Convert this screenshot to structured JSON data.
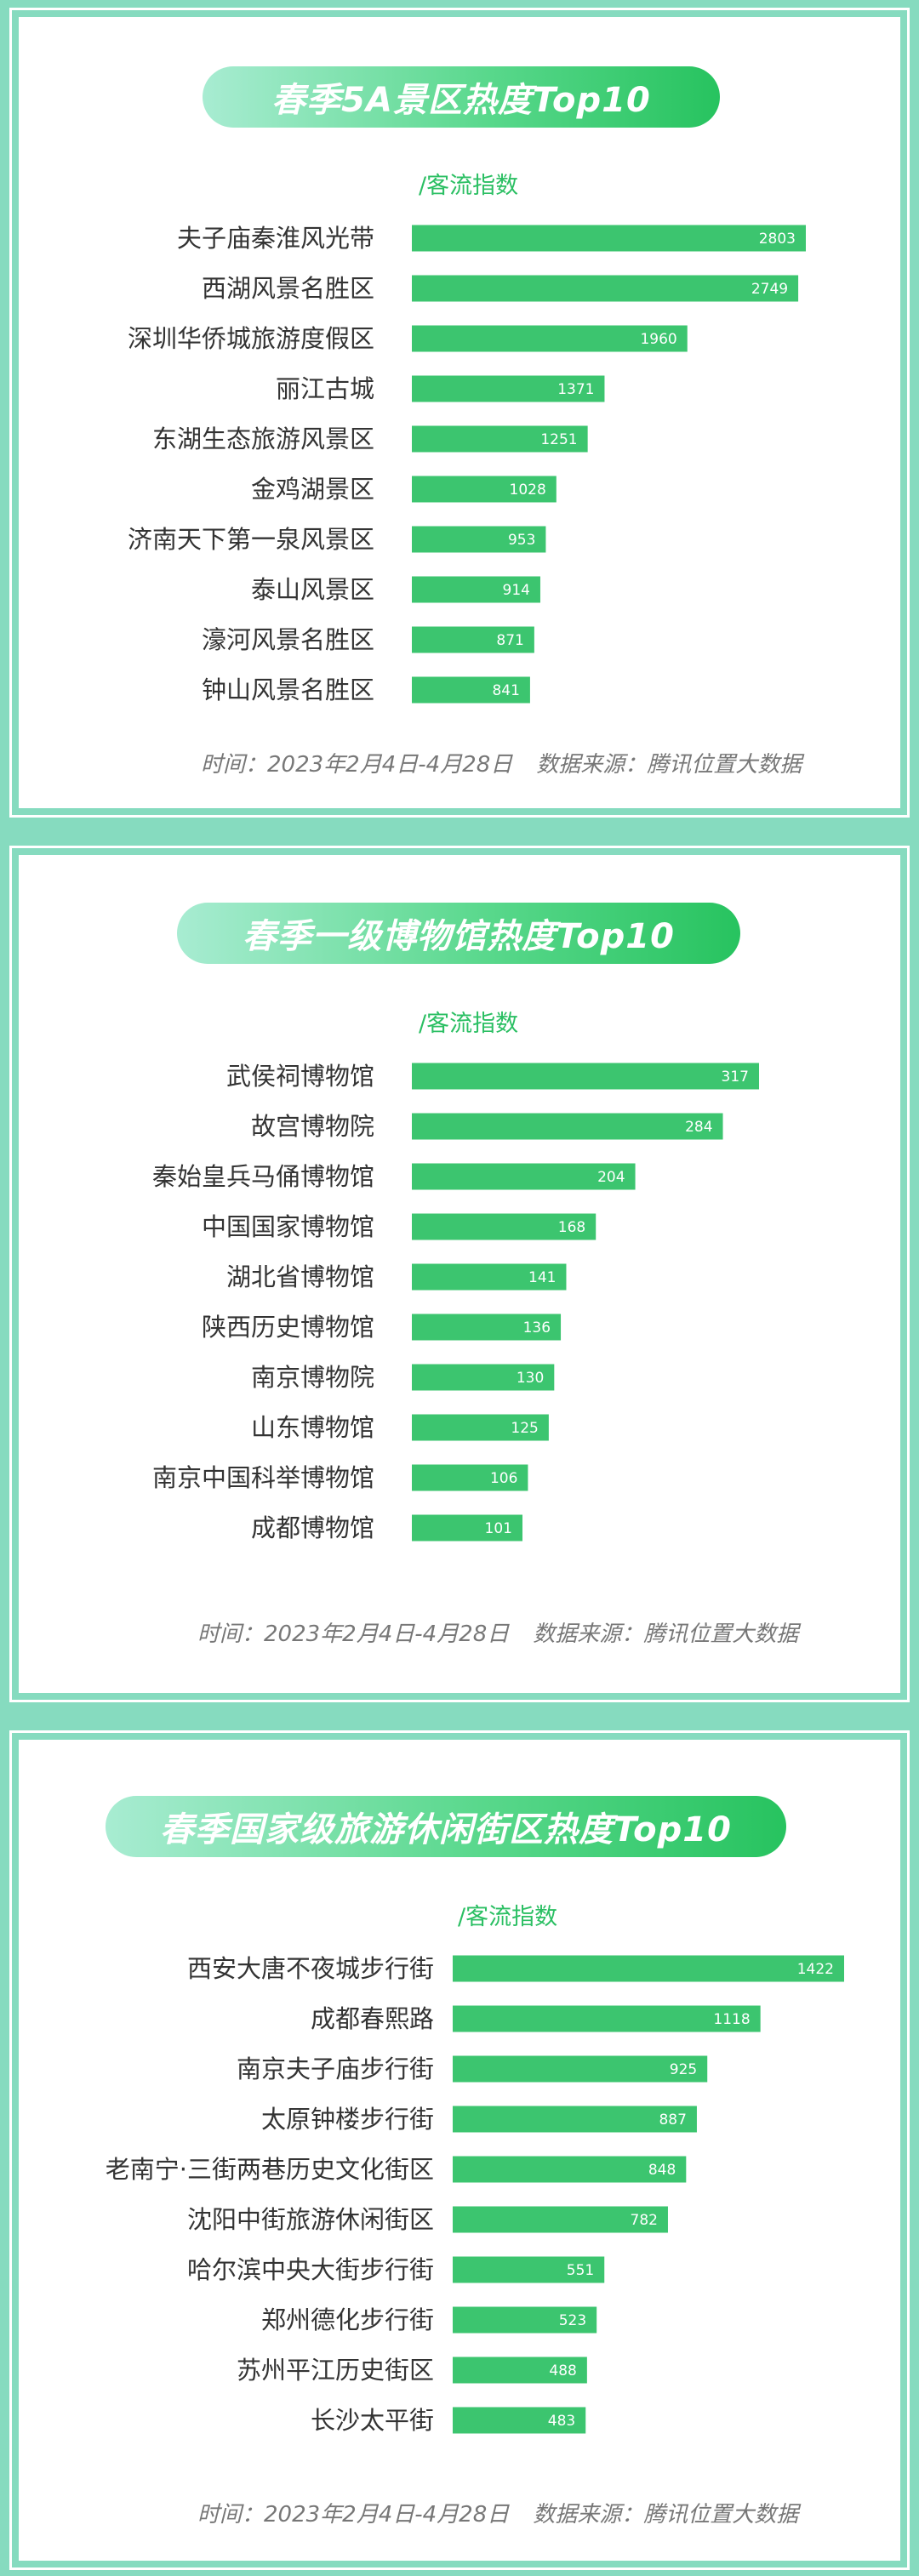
{
  "chart_data": [
    {
      "type": "bar",
      "orientation": "horizontal",
      "title": "春季5A景区热度Top10",
      "unit_label": "/客流指数",
      "categories": [
        "夫子庙秦淮风光带",
        "西湖风景名胜区",
        "深圳华侨城旅游度假区",
        "丽江古城",
        "东湖生态旅游风景区",
        "金鸡湖景区",
        "济南天下第一泉风景区",
        "泰山风景区",
        "濠河风景名胜区",
        "钟山风景名胜区"
      ],
      "values": [
        2803,
        2749,
        1960,
        1371,
        1251,
        1028,
        953,
        914,
        871,
        841
      ],
      "xlim": [
        0,
        2803
      ],
      "time_label": "时间：2023年2月4日-4月28日",
      "source_label": "数据来源：腾讯位置大数据",
      "bar_color": "#3cc56f"
    },
    {
      "type": "bar",
      "orientation": "horizontal",
      "title": "春季一级博物馆热度Top10",
      "unit_label": "/客流指数",
      "categories": [
        "武侯祠博物馆",
        "故宫博物院",
        "秦始皇兵马俑博物馆",
        "中国国家博物馆",
        "湖北省博物馆",
        "陕西历史博物馆",
        "南京博物院",
        "山东博物馆",
        "南京中国科举博物馆",
        "成都博物馆"
      ],
      "values": [
        317,
        284,
        204,
        168,
        141,
        136,
        130,
        125,
        106,
        101
      ],
      "xlim": [
        0,
        317
      ],
      "time_label": "时间：2023年2月4日-4月28日",
      "source_label": "数据来源：腾讯位置大数据",
      "bar_color": "#3cc56f"
    },
    {
      "type": "bar",
      "orientation": "horizontal",
      "title": "春季国家级旅游休闲街区热度Top10",
      "unit_label": "/客流指数",
      "categories": [
        "西安大唐不夜城步行街",
        "成都春熙路",
        "南京夫子庙步行街",
        "太原钟楼步行街",
        "老南宁·三街两巷历史文化街区",
        "沈阳中街旅游休闲街区",
        "哈尔滨中央大街步行街",
        "郑州德化步行街",
        "苏州平江历史街区",
        "长沙太平街"
      ],
      "values": [
        1422,
        1118,
        925,
        887,
        848,
        782,
        551,
        523,
        488,
        483
      ],
      "xlim": [
        0,
        1422
      ],
      "time_label": "时间：2023年2月4日-4月28日",
      "source_label": "数据来源：腾讯位置大数据",
      "bar_color": "#3cc56f"
    }
  ]
}
